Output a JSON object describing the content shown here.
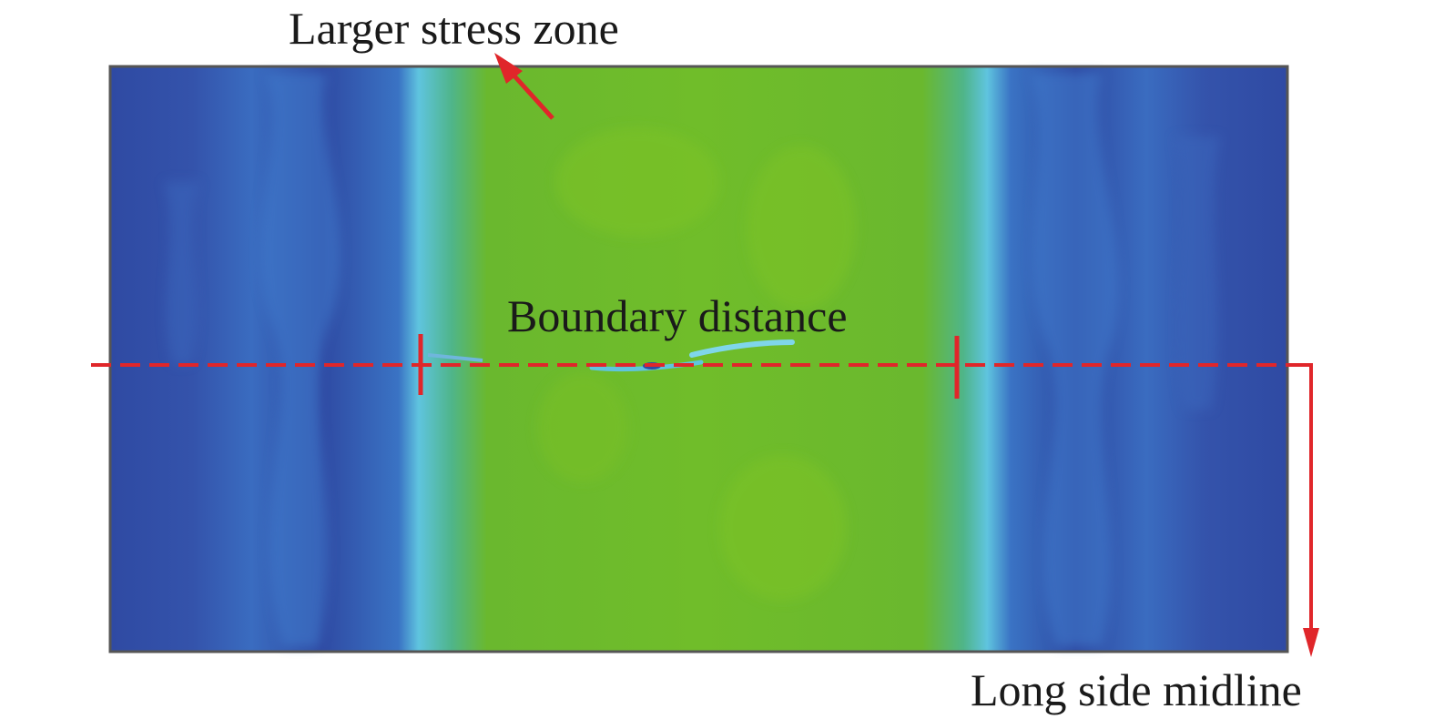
{
  "labels": {
    "larger_stress_zone": "Larger stress zone",
    "boundary_distance": "Boundary distance",
    "long_side_midline": "Long side midline"
  },
  "colors": {
    "low_stress_dark_blue": "#2f4aa3",
    "mid_blue": "#3a73c4",
    "light_cyan": "#5fc4df",
    "teal_transition": "#4fb58a",
    "high_stress_green": "#6ab82e",
    "bright_green": "#7cc225",
    "annotation_red": "#e0262a"
  },
  "icons": {
    "pointer_arrow": "arrow-icon",
    "midline_arrow": "down-arrow-icon"
  }
}
